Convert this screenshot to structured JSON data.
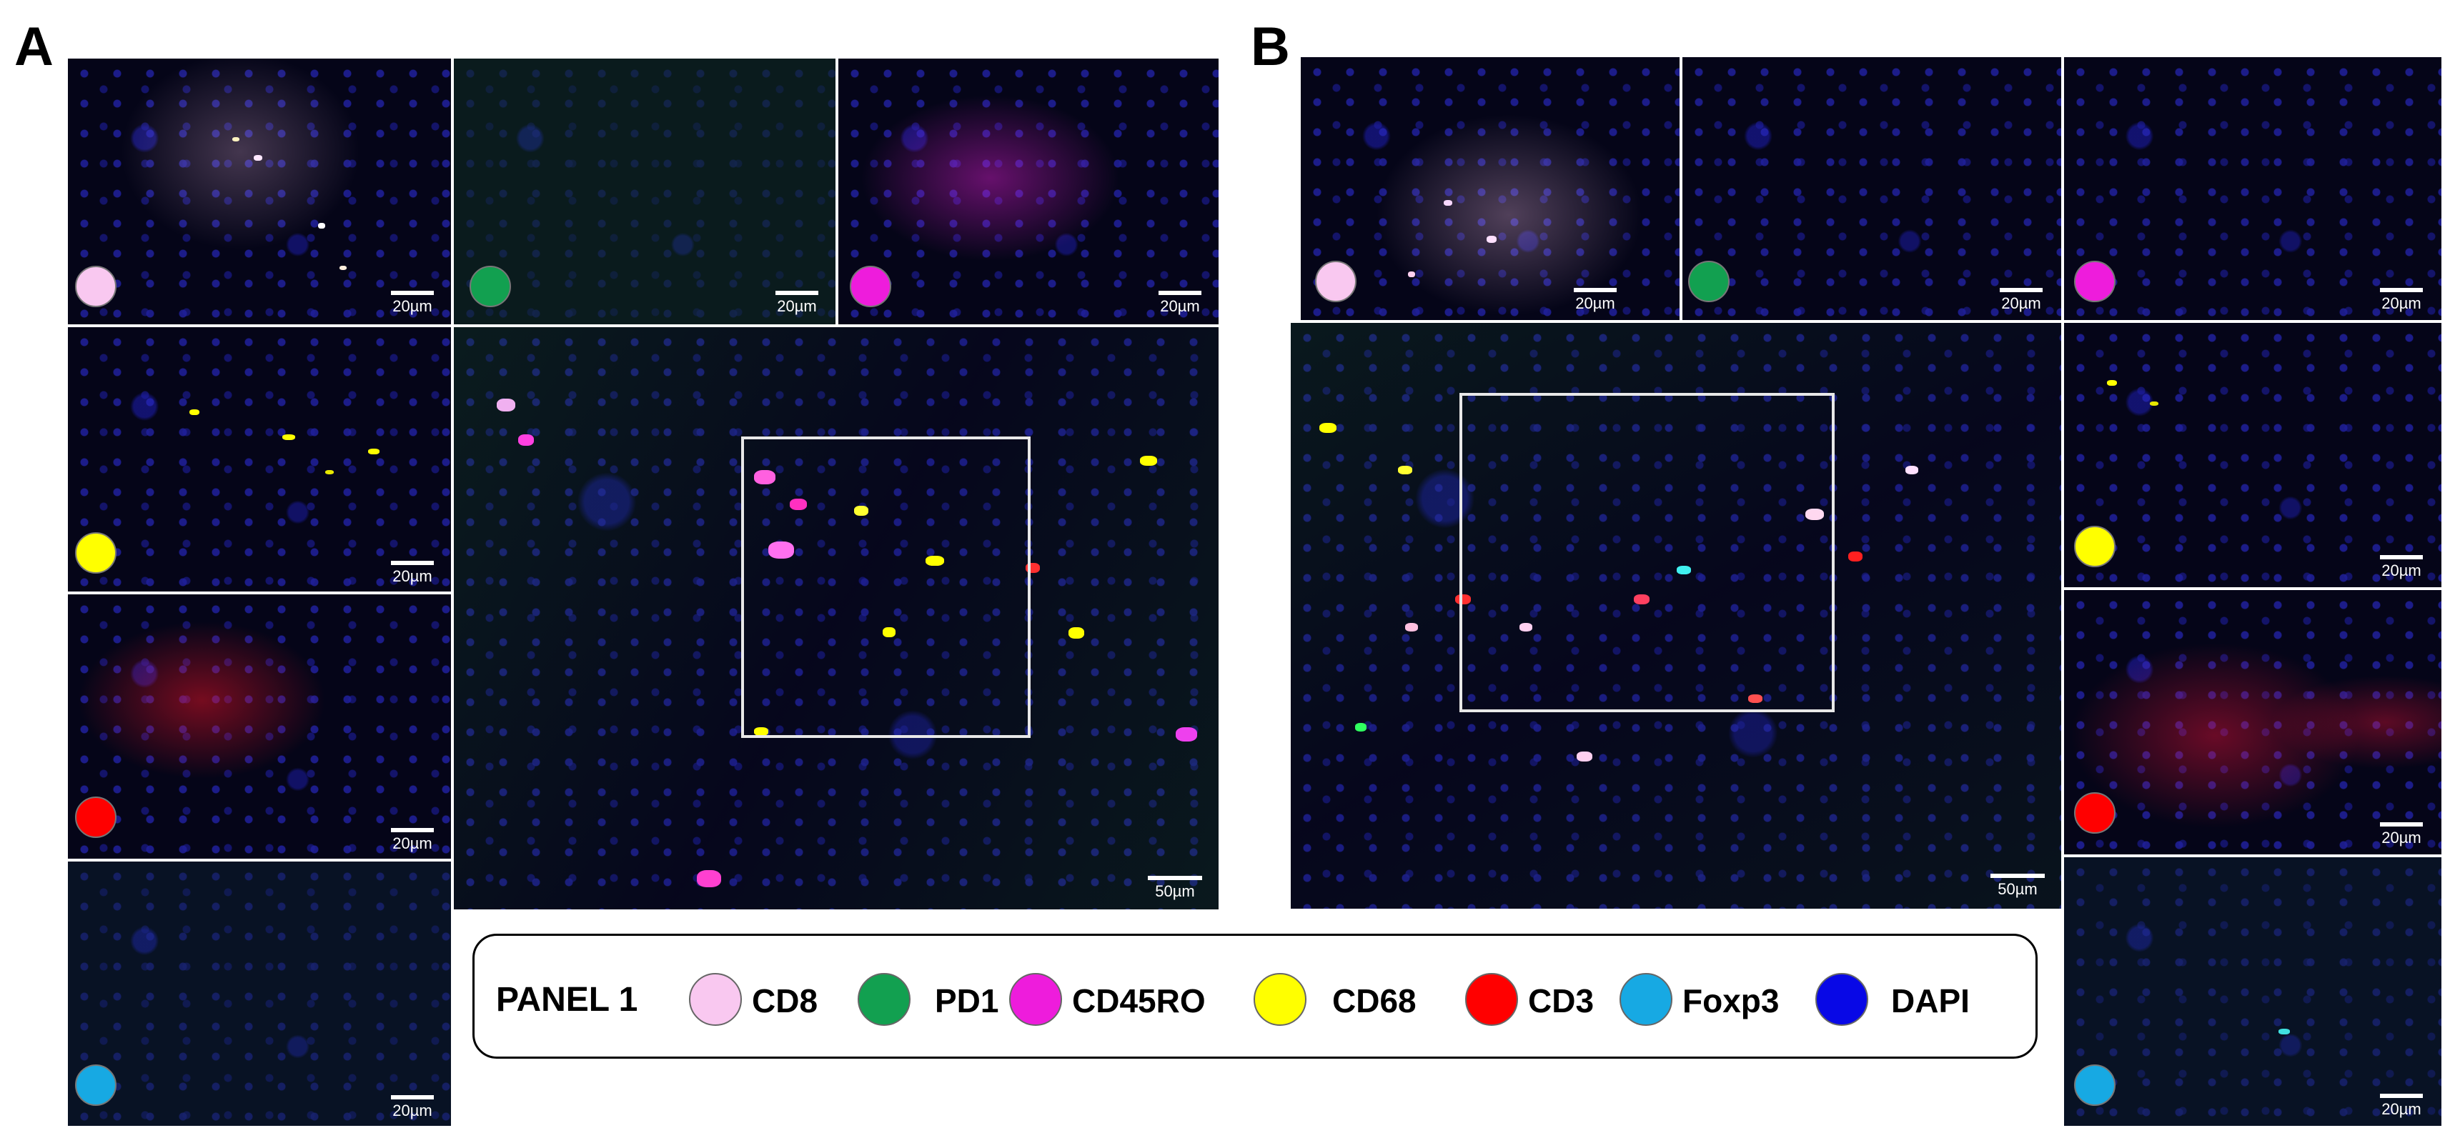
{
  "panels": [
    {
      "letter": "A"
    },
    {
      "letter": "B"
    }
  ],
  "colors": {
    "cd8": "#f9c8f0",
    "pd1": "#12a050",
    "cd45ro": "#ee1cdc",
    "cd68": "#ffff00",
    "cd3": "#ff0000",
    "foxp3": "#17a9e3",
    "dapi": "#0808e6"
  },
  "scale": {
    "small": "20µm",
    "large": "50µm"
  },
  "legend": {
    "title": "PANEL  1",
    "items": [
      {
        "label": "CD8",
        "color": "#f9c8f0"
      },
      {
        "label": "PD1",
        "color": "#12a050"
      },
      {
        "label": "CD45RO",
        "color": "#ee1cdc"
      },
      {
        "label": "CD68",
        "color": "#ffff00"
      },
      {
        "label": "CD3",
        "color": "#ff0000"
      },
      {
        "label": "Foxp3",
        "color": "#17a9e3"
      },
      {
        "label": "DAPI",
        "color": "#0808e6"
      }
    ]
  }
}
